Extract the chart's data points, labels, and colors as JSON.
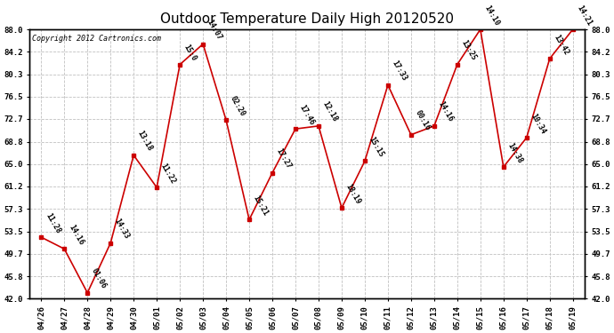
{
  "title": "Outdoor Temperature Daily High 20120520",
  "copyright_text": "Copyright 2012 Cartronics.com",
  "x_labels": [
    "04/26",
    "04/27",
    "04/28",
    "04/29",
    "04/30",
    "05/01",
    "05/02",
    "05/03",
    "05/04",
    "05/05",
    "05/06",
    "05/07",
    "05/08",
    "05/09",
    "05/10",
    "05/11",
    "05/12",
    "05/13",
    "05/14",
    "05/15",
    "05/16",
    "05/17",
    "05/18",
    "05/19"
  ],
  "y_values": [
    52.5,
    50.5,
    43.0,
    51.5,
    66.5,
    61.0,
    82.0,
    85.5,
    72.5,
    55.5,
    63.5,
    71.0,
    71.5,
    57.5,
    65.5,
    78.5,
    70.0,
    71.5,
    82.0,
    88.0,
    64.5,
    69.5,
    83.0,
    88.0
  ],
  "point_labels": [
    "11:28",
    "14:16",
    "01:06",
    "14:33",
    "13:18",
    "11:22",
    "15:0",
    "14:07",
    "02:20",
    "15:21",
    "17:27",
    "17:46",
    "12:18",
    "18:19",
    "15:15",
    "17:33",
    "00:16",
    "14:16",
    "13:25",
    "14:10",
    "14:38",
    "10:34",
    "13:42",
    "14:21"
  ],
  "ylim": [
    42.0,
    88.0
  ],
  "yticks": [
    42.0,
    45.8,
    49.7,
    53.5,
    57.3,
    61.2,
    65.0,
    68.8,
    72.7,
    76.5,
    80.3,
    84.2,
    88.0
  ],
  "ytick_labels": [
    "42.0",
    "45.8",
    "49.7",
    "53.5",
    "57.3",
    "61.2",
    "65.0",
    "68.8",
    "72.7",
    "76.5",
    "80.3",
    "84.2",
    "88.0"
  ],
  "line_color": "#cc0000",
  "marker_color": "#cc0000",
  "grid_color": "#c0c0c0",
  "bg_color": "#ffffff",
  "title_fontsize": 11,
  "label_fontsize": 6.5,
  "point_label_fontsize": 6,
  "copyright_fontsize": 6
}
